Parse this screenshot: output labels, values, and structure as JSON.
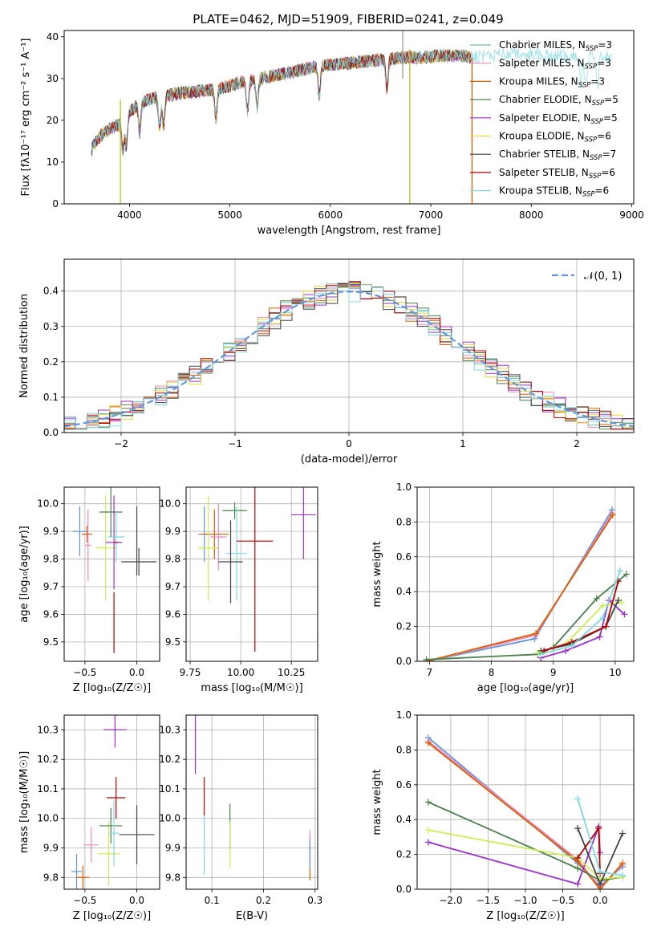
{
  "figure": {
    "title": "PLATE=0462, MJD=51909, FIBERID=0241, z=0.049"
  },
  "chart_data": [
    {
      "id": "spectrum",
      "type": "line",
      "xlabel": "wavelength [Angstrom, rest frame]",
      "ylabel": "Flux [fλ10⁻¹⁷ erg cm⁻² s⁻¹ A⁻¹]",
      "xlim": [
        3350,
        9020
      ],
      "ylim": [
        0,
        41.5
      ],
      "xticks": [
        4000,
        5000,
        6000,
        7000,
        8000,
        9000
      ],
      "yticks": [
        0,
        10,
        20,
        30,
        40
      ],
      "legend_position": "right",
      "continuum": {
        "x": [
          3620,
          3700,
          3800,
          3900,
          4000,
          4100,
          4200,
          4300,
          4500,
          4700,
          4900,
          5100,
          5300,
          5500,
          5700,
          5900,
          6100,
          6300,
          6500,
          6700,
          6900,
          7100,
          7300,
          7420
        ],
        "y": [
          13,
          16,
          18,
          19,
          22,
          24,
          25,
          25.5,
          26.5,
          27,
          27.5,
          29,
          30,
          31,
          32,
          33,
          33.5,
          34,
          34.5,
          35,
          35,
          35.5,
          35.5,
          35
        ]
      },
      "continuum_ext": {
        "x": [
          7400,
          7600,
          7800,
          8000,
          8200,
          8400,
          8600,
          8800
        ],
        "y": [
          35,
          35.5,
          36,
          36,
          35.5,
          35.5,
          35,
          35
        ]
      },
      "spikes": [
        {
          "x": 3910,
          "y_from": 0,
          "y_to": 25,
          "color": "#bcbd22"
        },
        {
          "x": 6790,
          "y_from": 0,
          "y_to": 37,
          "color": "#bcbd22"
        },
        {
          "x": 7410,
          "y_from": 0,
          "y_to": 35,
          "color": "#d95f02"
        },
        {
          "x": 6720,
          "y_from": 30,
          "y_to": 41.5,
          "color": "#999999"
        }
      ],
      "series": [
        {
          "name": "Chabrier MILES, N",
          "sub": "SSP",
          "eq": "=3",
          "color": "#66c2a5"
        },
        {
          "name": "Salpeter MILES, N",
          "sub": "SSP",
          "eq": "=3",
          "color": "#e78ac3"
        },
        {
          "name": "Kroupa MILES, N",
          "sub": "SSP",
          "eq": "=3",
          "color": "#d95f02"
        },
        {
          "name": "Chabrier ELODIE, N",
          "sub": "SSP",
          "eq": "=5",
          "color": "#4d7f4d"
        },
        {
          "name": "Salpeter ELODIE, N",
          "sub": "SSP",
          "eq": "=5",
          "color": "#9932cc"
        },
        {
          "name": "Kroupa ELODIE, N",
          "sub": "SSP",
          "eq": "=6",
          "color": "#e6d83b"
        },
        {
          "name": "Chabrier STELIB, N",
          "sub": "SSP",
          "eq": "=7",
          "color": "#444444"
        },
        {
          "name": "Salpeter STELIB, N",
          "sub": "SSP",
          "eq": "=6",
          "color": "#b00000"
        },
        {
          "name": "Kroupa STELIB, N",
          "sub": "SSP",
          "eq": "=6",
          "color": "#80d8e0"
        }
      ]
    },
    {
      "id": "residuals",
      "type": "line",
      "xlabel": "(data-model)/error",
      "ylabel": "Normed distribution",
      "xlim": [
        -2.5,
        2.5
      ],
      "ylim": [
        0,
        0.49
      ],
      "xticks": [
        -2,
        -1,
        0,
        1,
        2
      ],
      "yticks": [
        0.0,
        0.1,
        0.2,
        0.3,
        0.4
      ],
      "grid": true,
      "legend_position": "top-right",
      "gauss_label": "𝒩(0, 1)",
      "gauss_color": "#6495d8",
      "hist_bin_width": 0.1,
      "hist_colors": [
        "#66c2a5",
        "#e78ac3",
        "#d95f02",
        "#4d7f4d",
        "#9932cc",
        "#e6d83b",
        "#444444",
        "#b00000",
        "#80d8e0"
      ]
    },
    {
      "id": "age_vs_z",
      "type": "scatter",
      "xlabel": "Z [log₁₀(Z/Z☉)]",
      "ylabel": "age  [log₁₀(age/yr)]",
      "xlim": [
        -0.7,
        0.22
      ],
      "ylim": [
        9.43,
        10.06
      ],
      "xticks": [
        -0.5,
        0.0
      ],
      "yticks": [
        9.5,
        9.6,
        9.7,
        9.8,
        9.9,
        10.0
      ],
      "grid": true,
      "points": [
        {
          "x": -0.55,
          "y": 9.9,
          "xerr": 0.07,
          "yerr": 0.09,
          "color": "#6495d8"
        },
        {
          "x": -0.48,
          "y": 9.89,
          "xerr": 0.05,
          "yerr": 0.03,
          "color": "#d95f02"
        },
        {
          "x": -0.47,
          "y": 9.85,
          "xerr": 0.03,
          "yerr": 0.13,
          "color": "#e78ac3"
        },
        {
          "x": -0.3,
          "y": 9.84,
          "xerr": 0.1,
          "yerr": 0.19,
          "color": "#ccee55"
        },
        {
          "x": -0.25,
          "y": 9.97,
          "xerr": 0.11,
          "yerr": 0.09,
          "color": "#4d7f4d"
        },
        {
          "x": -0.22,
          "y": 9.86,
          "xerr": 0.08,
          "yerr": 0.17,
          "color": "#9932cc"
        },
        {
          "x": -0.2,
          "y": 9.88,
          "xerr": 0.08,
          "yerr": 0.09,
          "color": "#80d8e0"
        },
        {
          "x": -0.22,
          "y": 9.57,
          "xerr": 0.0,
          "yerr": 0.11,
          "color": "#b00000"
        },
        {
          "x": -0.2,
          "y": 9.86,
          "xerr": 0.02,
          "yerr": 0.0,
          "color": "#b00000"
        },
        {
          "x": 0.02,
          "y": 9.79,
          "xerr": 0.17,
          "yerr": 0.05,
          "color": "#444444"
        },
        {
          "x": 0.0,
          "y": 9.865,
          "xerr": 0.0,
          "yerr": 0.125,
          "color": "#444444"
        }
      ]
    },
    {
      "id": "age_vs_mass",
      "type": "scatter",
      "xlabel": "mass [log₁₀(M/M☉)]",
      "ylabel": "",
      "xlim": [
        9.73,
        10.38
      ],
      "ylim": [
        9.43,
        10.06
      ],
      "xticks": [
        9.75,
        10.0,
        10.25
      ],
      "yticks": [
        9.5,
        9.6,
        9.7,
        9.8,
        9.9,
        10.0
      ],
      "grid": true,
      "points": [
        {
          "x": 9.82,
          "y": 9.89,
          "xerr": 0.03,
          "yerr": 0.1,
          "color": "#6495d8"
        },
        {
          "x": 9.87,
          "y": 9.89,
          "xerr": 0.07,
          "yerr": 0.09,
          "color": "#d95f02"
        },
        {
          "x": 9.89,
          "y": 9.88,
          "xerr": 0.04,
          "yerr": 0.12,
          "color": "#e78ac3"
        },
        {
          "x": 9.84,
          "y": 9.84,
          "xerr": 0.05,
          "yerr": 0.19,
          "color": "#ccee55"
        },
        {
          "x": 9.97,
          "y": 9.975,
          "xerr": 0.06,
          "yerr": 0.03,
          "color": "#4d7f4d"
        },
        {
          "x": 9.98,
          "y": 9.82,
          "xerr": 0.05,
          "yerr": 0.17,
          "color": "#80d8e0"
        },
        {
          "x": 9.95,
          "y": 9.79,
          "xerr": 0.06,
          "yerr": 0.15,
          "color": "#444444"
        },
        {
          "x": 10.07,
          "y": 9.865,
          "xerr": 0.09,
          "yerr": 0.4,
          "color": "#b00000"
        },
        {
          "x": 10.31,
          "y": 9.96,
          "xerr": 0.06,
          "yerr": 0.16,
          "color": "#9932cc"
        }
      ]
    },
    {
      "id": "mass_weight_vs_age",
      "type": "line",
      "xlabel": "age  [log₁₀(age/yr)]",
      "ylabel": "mass weight",
      "xlim": [
        6.8,
        10.3
      ],
      "ylim": [
        0,
        1
      ],
      "xticks": [
        7,
        8,
        9,
        10
      ],
      "yticks": [
        0.0,
        0.2,
        0.4,
        0.6,
        0.8,
        1.0
      ],
      "grid": true,
      "series": [
        {
          "x": [
            6.95,
            8.7,
            9.95
          ],
          "y": [
            0.0,
            0.13,
            0.87
          ],
          "color": "#6495d8"
        },
        {
          "x": [
            6.95,
            8.72,
            9.95
          ],
          "y": [
            0.0,
            0.15,
            0.85
          ],
          "color": "#e78ac3"
        },
        {
          "x": [
            6.95,
            8.72,
            9.96
          ],
          "y": [
            0.0,
            0.16,
            0.84
          ],
          "color": "#d95f02"
        },
        {
          "x": [
            6.95,
            8.75,
            9.0,
            9.7,
            10.18
          ],
          "y": [
            0.01,
            0.04,
            0.08,
            0.36,
            0.5
          ],
          "color": "#4d7f4d"
        },
        {
          "x": [
            8.8,
            9.2,
            9.75,
            9.9,
            10.15
          ],
          "y": [
            0.02,
            0.06,
            0.14,
            0.35,
            0.27
          ],
          "color": "#9932cc"
        },
        {
          "x": [
            8.75,
            9.2,
            9.8,
            10.1
          ],
          "y": [
            0.05,
            0.1,
            0.32,
            0.34
          ],
          "color": "#ccee55"
        },
        {
          "x": [
            8.8,
            9.3,
            9.85,
            10.05
          ],
          "y": [
            0.06,
            0.1,
            0.2,
            0.35
          ],
          "color": "#444444"
        },
        {
          "x": [
            8.85,
            9.3,
            9.85,
            10.05
          ],
          "y": [
            0.06,
            0.11,
            0.2,
            0.46
          ],
          "color": "#b00000"
        },
        {
          "x": [
            8.8,
            9.3,
            9.8,
            10.08
          ],
          "y": [
            0.04,
            0.09,
            0.25,
            0.52
          ],
          "color": "#80d8e0"
        }
      ]
    },
    {
      "id": "mass_vs_z",
      "type": "scatter",
      "xlabel": "Z [log₁₀(Z/Z☉)]",
      "ylabel": "mass [log₁₀(M/M☉)]",
      "xlim": [
        -0.7,
        0.22
      ],
      "ylim": [
        9.76,
        10.35
      ],
      "xticks": [
        -0.5,
        0.0
      ],
      "yticks": [
        9.8,
        9.9,
        10.0,
        10.1,
        10.2,
        10.3
      ],
      "grid": true,
      "points": [
        {
          "x": -0.58,
          "y": 9.82,
          "xerr": 0.05,
          "yerr": 0.06,
          "color": "#6495d8"
        },
        {
          "x": -0.52,
          "y": 9.8,
          "xerr": 0.06,
          "yerr": 0.04,
          "color": "#d95f02"
        },
        {
          "x": -0.44,
          "y": 9.91,
          "xerr": 0.07,
          "yerr": 0.06,
          "color": "#e78ac3"
        },
        {
          "x": -0.27,
          "y": 9.88,
          "xerr": 0.11,
          "yerr": 0.11,
          "color": "#ccee55"
        },
        {
          "x": -0.25,
          "y": 9.975,
          "xerr": 0.11,
          "yerr": 0.06,
          "color": "#4d7f4d"
        },
        {
          "x": -0.22,
          "y": 9.95,
          "xerr": 0.05,
          "yerr": 0.11,
          "color": "#80d8e0"
        },
        {
          "x": -0.2,
          "y": 10.07,
          "xerr": 0.09,
          "yerr": 0.07,
          "color": "#b00000"
        },
        {
          "x": -0.21,
          "y": 10.3,
          "xerr": 0.11,
          "yerr": 0.06,
          "color": "#9932cc"
        },
        {
          "x": 0.0,
          "y": 9.945,
          "xerr": 0.17,
          "yerr": 0.1,
          "color": "#444444"
        }
      ]
    },
    {
      "id": "mass_vs_ebv",
      "type": "scatter",
      "xlabel": "E(B-V)",
      "ylabel": "",
      "xlim": [
        0.05,
        0.305
      ],
      "ylim": [
        9.76,
        10.35
      ],
      "xticks": [
        0.1,
        0.2,
        0.3
      ],
      "yticks": [
        9.8,
        9.9,
        10.0,
        10.1,
        10.2,
        10.3
      ],
      "grid": true,
      "points": [
        {
          "x": 0.068,
          "y": 10.25,
          "xerr": 0.0,
          "yerr": 0.1,
          "color": "#9932cc"
        },
        {
          "x": 0.085,
          "y": 10.075,
          "xerr": 0.0,
          "yerr": 0.065,
          "color": "#b00000"
        },
        {
          "x": 0.085,
          "y": 9.91,
          "xerr": 0.0,
          "yerr": 0.1,
          "color": "#80d8e0"
        },
        {
          "x": 0.135,
          "y": 9.97,
          "xerr": 0.0,
          "yerr": 0.08,
          "color": "#4d7f4d"
        },
        {
          "x": 0.135,
          "y": 9.91,
          "xerr": 0.0,
          "yerr": 0.08,
          "color": "#ccee55"
        },
        {
          "x": 0.29,
          "y": 9.86,
          "xerr": 0.0,
          "yerr": 0.07,
          "color": "#d95f02"
        },
        {
          "x": 0.29,
          "y": 9.9,
          "xerr": 0.0,
          "yerr": 0.06,
          "color": "#e78ac3"
        },
        {
          "x": 0.29,
          "y": 9.88,
          "xerr": 0.0,
          "yerr": 0.05,
          "color": "#6495d8"
        }
      ]
    },
    {
      "id": "mass_weight_vs_z",
      "type": "line",
      "xlabel": "Z [log₁₀(Z/Z☉)]",
      "ylabel": "mass weight",
      "xlim": [
        -2.45,
        0.45
      ],
      "ylim": [
        0,
        1
      ],
      "xticks": [
        -2.0,
        -1.5,
        -1.0,
        -0.5,
        0.0
      ],
      "yticks": [
        0.0,
        0.2,
        0.4,
        0.6,
        0.8,
        1.0
      ],
      "grid": true,
      "series": [
        {
          "x": [
            -2.3,
            -0.3,
            0.0,
            0.3
          ],
          "y": [
            0.87,
            0.15,
            0.02,
            0.13
          ],
          "color": "#6495d8"
        },
        {
          "x": [
            -2.3,
            -0.3,
            0.0,
            0.3
          ],
          "y": [
            0.85,
            0.17,
            0.01,
            0.14
          ],
          "color": "#e78ac3"
        },
        {
          "x": [
            -2.3,
            -0.3,
            0.0,
            0.3
          ],
          "y": [
            0.84,
            0.16,
            0.0,
            0.15
          ],
          "color": "#d95f02"
        },
        {
          "x": [
            -2.3,
            -0.3,
            0.0,
            0.3
          ],
          "y": [
            0.5,
            0.12,
            0.05,
            0.07
          ],
          "color": "#4d7f4d"
        },
        {
          "x": [
            -2.3,
            -0.3,
            -0.02,
            0.0
          ],
          "y": [
            0.27,
            0.03,
            0.36,
            0.21
          ],
          "color": "#9932cc"
        },
        {
          "x": [
            -2.3,
            -0.3,
            0.0,
            0.3
          ],
          "y": [
            0.34,
            0.18,
            0.06,
            0.07
          ],
          "color": "#ccee55"
        },
        {
          "x": [
            -0.3,
            0.0,
            0.3
          ],
          "y": [
            0.35,
            0.03,
            0.32
          ],
          "color": "#444444"
        },
        {
          "x": [
            -0.3,
            -0.02,
            0.0
          ],
          "y": [
            0.18,
            0.35,
            0.09
          ],
          "color": "#b00000"
        },
        {
          "x": [
            -0.3,
            0.0,
            0.3
          ],
          "y": [
            0.52,
            0.1,
            0.08
          ],
          "color": "#80d8e0"
        }
      ]
    }
  ]
}
